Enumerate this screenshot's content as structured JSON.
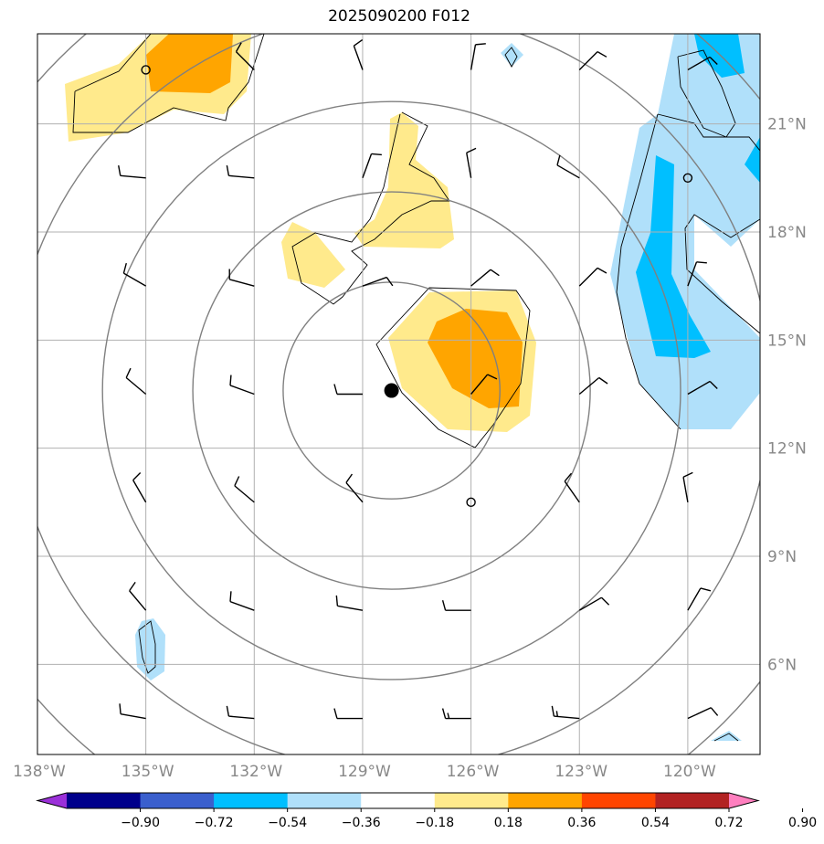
{
  "title": "2025090200 F012",
  "map": {
    "lon_range": [
      -138,
      -118
    ],
    "lat_range": [
      3.5,
      23.5
    ],
    "lon_ticks": [
      {
        "value": -138,
        "label": "138°W"
      },
      {
        "value": -135,
        "label": "135°W"
      },
      {
        "value": -132,
        "label": "132°W"
      },
      {
        "value": -129,
        "label": "129°W"
      },
      {
        "value": -126,
        "label": "126°W"
      },
      {
        "value": -123,
        "label": "123°W"
      },
      {
        "value": -120,
        "label": "120°W"
      }
    ],
    "lat_ticks": [
      {
        "value": 6,
        "label": "6°N"
      },
      {
        "value": 9,
        "label": "9°N"
      },
      {
        "value": 12,
        "label": "12°N"
      },
      {
        "value": 15,
        "label": "15°N"
      },
      {
        "value": 18,
        "label": "18°N"
      },
      {
        "value": 21,
        "label": "21°N"
      }
    ],
    "storm_center": {
      "lon": -128.2,
      "lat": 13.6
    },
    "range_rings_deg": [
      3,
      5.5,
      8,
      10.5,
      13
    ],
    "gridline_color": "#b0b0b0",
    "ring_color": "#808080"
  },
  "colorbar": {
    "boundaries": [
      "−0.90",
      "−0.72",
      "−0.54",
      "−0.36",
      "−0.18",
      "0.18",
      "0.36",
      "0.54",
      "0.72",
      "0.90"
    ],
    "colors": [
      "#9b30d9",
      "#00008b",
      "#3a5fcd",
      "#00bfff",
      "#b0e0fa",
      "#ffffff",
      "#ffea8c",
      "#ffa500",
      "#ff4500",
      "#b22222",
      "#ff7fbf"
    ]
  },
  "fill_colors": {
    "pos1": "#ffea8c",
    "pos2": "#ffa500",
    "neg1": "#b0e0fa",
    "neg2": "#00bfff"
  },
  "wind_barbs": {
    "lons": [
      -138,
      -135,
      -132,
      -129,
      -126,
      -123,
      -120
    ],
    "lats": [
      22.5,
      19.5,
      16.5,
      13.5,
      10.5,
      7.5,
      4.5
    ],
    "dirs": [
      [
        300,
        320,
        315,
        340,
        10,
        45,
        60
      ],
      [
        275,
        275,
        275,
        20,
        350,
        300,
        90
      ],
      [
        290,
        300,
        285,
        70,
        50,
        45,
        20
      ],
      [
        275,
        310,
        290,
        270,
        40,
        50,
        60
      ],
      [
        300,
        330,
        310,
        320,
        330,
        325,
        350
      ],
      [
        300,
        320,
        290,
        280,
        270,
        60,
        30
      ],
      [
        275,
        280,
        275,
        270,
        270,
        275,
        65
      ]
    ],
    "speeds": [
      [
        10,
        10,
        10,
        10,
        10,
        10,
        10
      ],
      [
        10,
        10,
        10,
        10,
        10,
        10,
        10
      ],
      [
        10,
        10,
        10,
        10,
        10,
        10,
        10
      ],
      [
        10,
        10,
        10,
        10,
        10,
        10,
        10
      ],
      [
        10,
        10,
        10,
        10,
        10,
        10,
        10
      ],
      [
        10,
        10,
        10,
        10,
        10,
        10,
        10
      ],
      [
        10,
        10,
        10,
        10,
        15,
        15,
        10
      ]
    ],
    "calm_points": [
      {
        "lon": -135,
        "lat": 22.5
      },
      {
        "lon": -120,
        "lat": 19.5
      },
      {
        "lon": -126,
        "lat": 10.5
      }
    ]
  }
}
